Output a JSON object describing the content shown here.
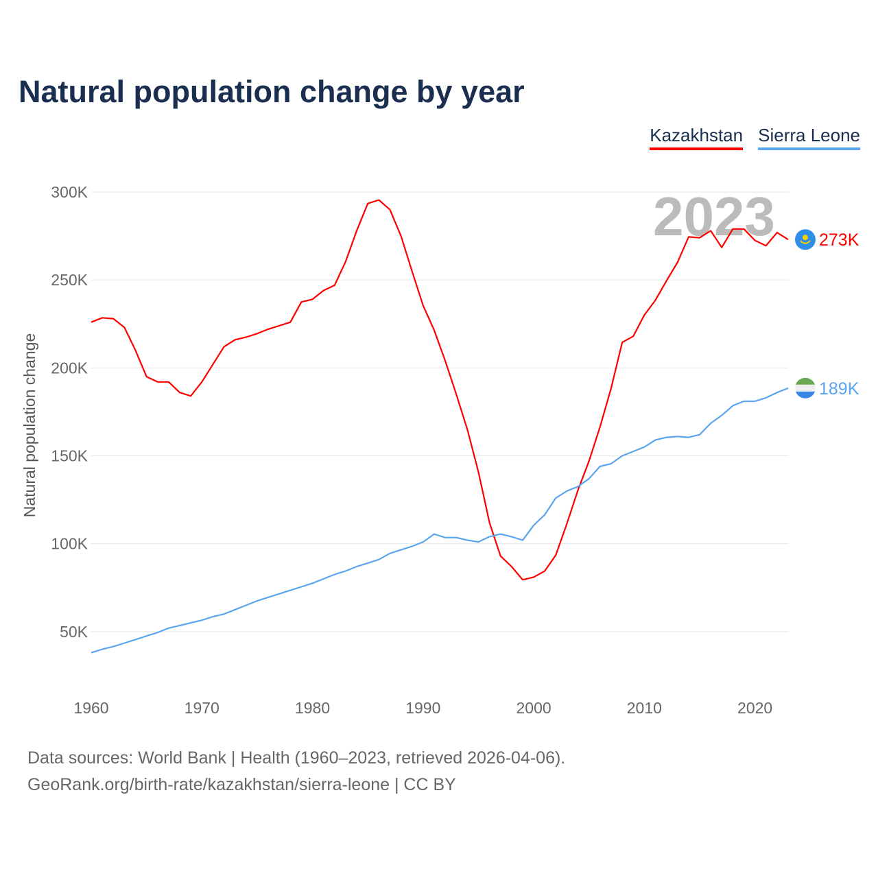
{
  "title": "Natural population change by year",
  "footer": {
    "line1": "Data sources: World Bank | Health (1960–2023, retrieved 2026-04-06).",
    "line2": "GeoRank.org/birth-rate/kazakhstan/sierra-leone | CC BY"
  },
  "chart_data": {
    "type": "line",
    "title": "Natural population change by year",
    "xlabel": "",
    "ylabel": "Natural population change",
    "xlim": [
      1960,
      2023
    ],
    "ylim": [
      0,
      300000
    ],
    "x_ticks": [
      1960,
      1970,
      1980,
      1990,
      2000,
      2010,
      2020
    ],
    "x_tick_labels": [
      "1960",
      "1970",
      "1980",
      "1990",
      "2000",
      "2010",
      "2020"
    ],
    "y_ticks": [
      50000,
      100000,
      150000,
      200000,
      250000,
      300000
    ],
    "y_tick_labels": [
      "50K",
      "100K",
      "150K",
      "200K",
      "250K",
      "300K"
    ],
    "grid": true,
    "legend_placement": "top-right",
    "year_watermark": "2023",
    "x": [
      1960,
      1961,
      1962,
      1963,
      1964,
      1965,
      1966,
      1967,
      1968,
      1969,
      1970,
      1971,
      1972,
      1973,
      1974,
      1975,
      1976,
      1977,
      1978,
      1979,
      1980,
      1981,
      1982,
      1983,
      1984,
      1985,
      1986,
      1987,
      1988,
      1989,
      1990,
      1991,
      1992,
      1993,
      1994,
      1995,
      1996,
      1997,
      1998,
      1999,
      2000,
      2001,
      2002,
      2003,
      2004,
      2005,
      2006,
      2007,
      2008,
      2009,
      2010,
      2011,
      2012,
      2013,
      2014,
      2015,
      2016,
      2017,
      2018,
      2019,
      2020,
      2021,
      2022,
      2023
    ],
    "series": [
      {
        "name": "Kazakhstan",
        "color": "#ff0000",
        "end_label": "273K",
        "flag": "kazakhstan-flag",
        "values": [
          226000,
          228500,
          228000,
          223000,
          210000,
          195000,
          192000,
          192000,
          186000,
          184000,
          192000,
          202000,
          212000,
          216000,
          217500,
          219500,
          222000,
          224000,
          226000,
          237500,
          239000,
          244000,
          247000,
          260500,
          278000,
          293500,
          295500,
          290000,
          275000,
          255000,
          235500,
          221500,
          204000,
          185000,
          165000,
          141000,
          112000,
          93000,
          87000,
          79500,
          81000,
          84500,
          93500,
          111500,
          130500,
          147000,
          166500,
          188500,
          214500,
          218000,
          230000,
          238500,
          249500,
          260000,
          274500,
          274000,
          278000,
          268500,
          279000,
          279000,
          272500,
          269500,
          277000,
          273000
        ]
      },
      {
        "name": "Sierra Leone",
        "color": "#5ba4ee",
        "end_label": "189K",
        "flag": "sierra-leone-flag",
        "values": [
          38000,
          40000,
          41500,
          43500,
          45500,
          47500,
          49500,
          52000,
          53500,
          55000,
          56500,
          58500,
          60000,
          62500,
          65000,
          67500,
          69500,
          71500,
          73500,
          75500,
          77500,
          80000,
          82500,
          84500,
          87000,
          89000,
          91000,
          94500,
          96500,
          98500,
          101000,
          105500,
          103500,
          103500,
          102000,
          101000,
          104000,
          105500,
          104000,
          102000,
          110500,
          116500,
          126000,
          130000,
          132500,
          137000,
          144000,
          145500,
          150000,
          152500,
          155000,
          159000,
          160500,
          161000,
          160500,
          162000,
          168500,
          173000,
          178500,
          181000,
          181000,
          183000,
          186000,
          188500
        ]
      }
    ]
  }
}
